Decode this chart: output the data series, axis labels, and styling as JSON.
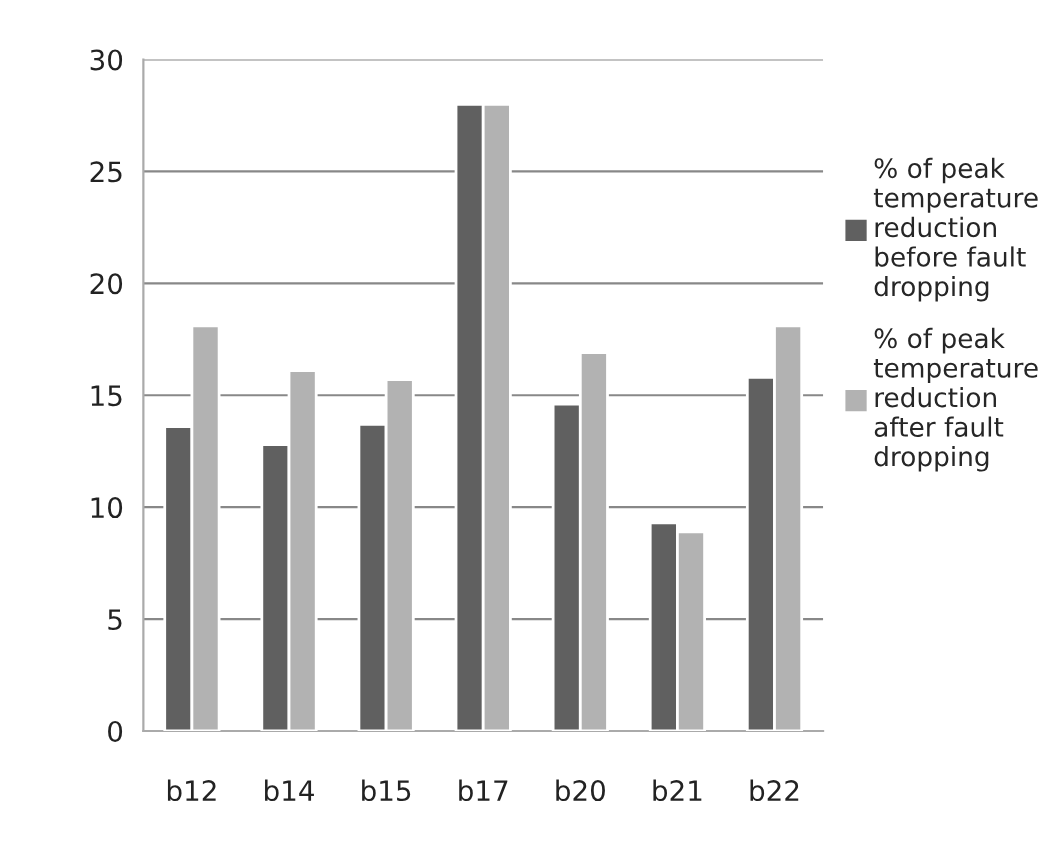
{
  "chart_data": {
    "type": "bar",
    "categories": [
      "b12",
      "b14",
      "b15",
      "b17",
      "b20",
      "b21",
      "b22"
    ],
    "series": [
      {
        "name": "% of peak temperature reduction before fault dropping",
        "color": "#606060",
        "values": [
          13.6,
          12.8,
          13.7,
          28.0,
          14.6,
          9.3,
          15.8
        ]
      },
      {
        "name": "% of peak temperature reduction after fault dropping",
        "color": "#b2b2b2",
        "values": [
          18.1,
          16.1,
          15.7,
          28.0,
          16.9,
          8.9,
          18.1
        ]
      }
    ],
    "ylim": [
      0,
      30
    ],
    "yticks": [
      0,
      5,
      10,
      15,
      20,
      25,
      30
    ],
    "grid": "y",
    "legend": "right"
  }
}
